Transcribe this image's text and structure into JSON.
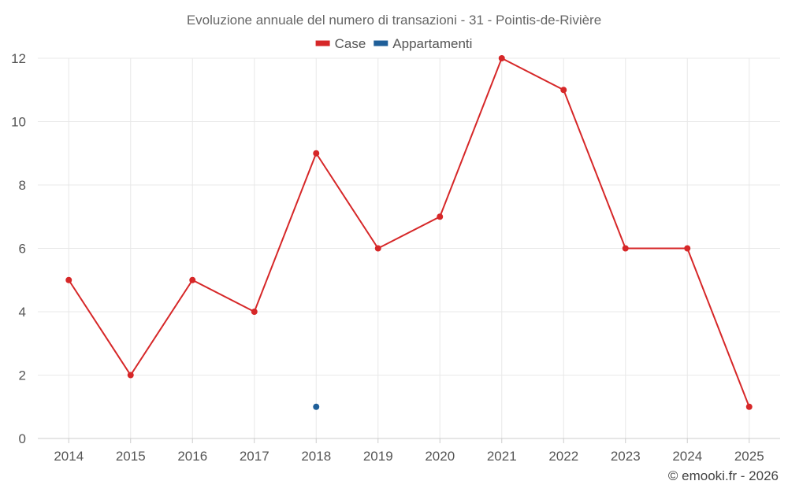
{
  "chart_data": {
    "type": "line",
    "title": "Evoluzione annuale del numero di transazioni - 31 - Pointis-de-Rivière",
    "categories": [
      "2014",
      "2015",
      "2016",
      "2017",
      "2018",
      "2019",
      "2020",
      "2021",
      "2022",
      "2023",
      "2024",
      "2025"
    ],
    "series": [
      {
        "name": "Case",
        "color": "#d62728",
        "values": [
          5,
          2,
          5,
          4,
          9,
          6,
          7,
          12,
          11,
          6,
          6,
          1
        ]
      },
      {
        "name": "Appartamenti",
        "color": "#1f5f99",
        "values": [
          null,
          null,
          null,
          null,
          1,
          null,
          null,
          null,
          null,
          null,
          null,
          null
        ]
      }
    ],
    "ylim": [
      0,
      12
    ],
    "yticks": [
      "0",
      "2",
      "4",
      "6",
      "8",
      "10",
      "12"
    ],
    "xlabel": "",
    "ylabel": "",
    "grid": true,
    "legend": "top-center"
  },
  "credit": "© emooki.fr - 2026"
}
